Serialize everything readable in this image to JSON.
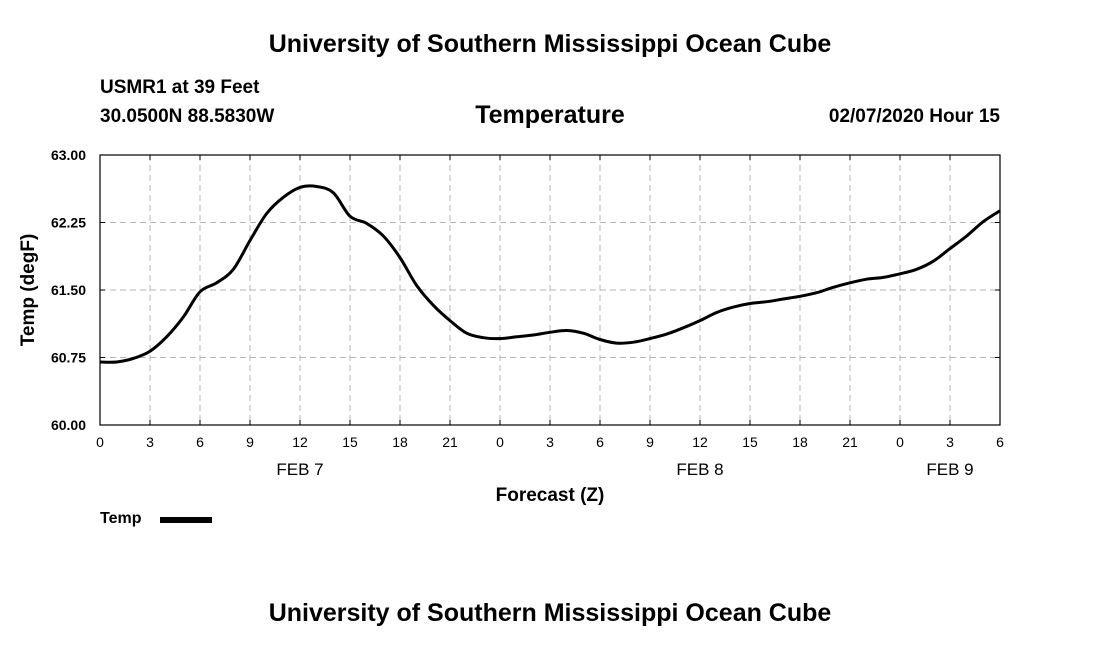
{
  "header": {
    "title": "University of Southern Mississippi Ocean Cube",
    "station": "USMR1 at 39 Feet",
    "coordinates": "30.0500N 88.5830W",
    "variable": "Temperature",
    "datetime": "02/07/2020 Hour 15"
  },
  "footer": {
    "title": "University of Southern Mississippi Ocean Cube"
  },
  "chart_data": {
    "type": "line",
    "title": "Temperature",
    "xlabel": "Forecast (Z)",
    "ylabel": "Temp (degF)",
    "xlim": [
      0,
      54
    ],
    "ylim": [
      60.0,
      63.0
    ],
    "x_ticks": [
      0,
      3,
      6,
      9,
      12,
      15,
      18,
      21,
      24,
      27,
      30,
      33,
      36,
      39,
      42,
      45,
      48,
      51,
      54
    ],
    "x_tick_labels": [
      "0",
      "3",
      "6",
      "9",
      "12",
      "15",
      "18",
      "21",
      "0",
      "3",
      "6",
      "9",
      "12",
      "15",
      "18",
      "21",
      "0",
      "3",
      "6"
    ],
    "day_labels": [
      {
        "x": 12,
        "label": "FEB 7"
      },
      {
        "x": 36,
        "label": "FEB 8"
      },
      {
        "x": 51,
        "label": "FEB 9"
      }
    ],
    "y_ticks": [
      60.0,
      60.75,
      61.5,
      62.25,
      63.0
    ],
    "y_tick_labels": [
      "60.00",
      "60.75",
      "61.50",
      "62.25",
      "63.00"
    ],
    "grid": true,
    "legend": "bottom-left",
    "series": [
      {
        "name": "Temp",
        "color": "#000000",
        "x": [
          0,
          1,
          2,
          3,
          4,
          5,
          6,
          7,
          8,
          9,
          10,
          11,
          12,
          13,
          14,
          15,
          16,
          17,
          18,
          19,
          20,
          21,
          22,
          23,
          24,
          25,
          26,
          27,
          28,
          29,
          30,
          31,
          32,
          33,
          34,
          35,
          36,
          37,
          38,
          39,
          40,
          41,
          42,
          43,
          44,
          45,
          46,
          47,
          48,
          49,
          50,
          51,
          52,
          53,
          54
        ],
        "values": [
          60.7,
          60.7,
          60.74,
          60.82,
          60.98,
          61.2,
          61.48,
          61.58,
          61.73,
          62.05,
          62.35,
          62.53,
          62.64,
          62.65,
          62.58,
          62.32,
          62.24,
          62.1,
          61.86,
          61.55,
          61.33,
          61.16,
          61.02,
          60.97,
          60.96,
          60.98,
          61.0,
          61.03,
          61.05,
          61.02,
          60.95,
          60.91,
          60.92,
          60.96,
          61.01,
          61.08,
          61.16,
          61.25,
          61.31,
          61.35,
          61.37,
          61.4,
          61.43,
          61.47,
          61.53,
          61.58,
          61.62,
          61.64,
          61.68,
          61.73,
          61.82,
          61.96,
          62.1,
          62.26,
          62.38
        ]
      }
    ]
  },
  "legend": {
    "label": "Temp"
  }
}
